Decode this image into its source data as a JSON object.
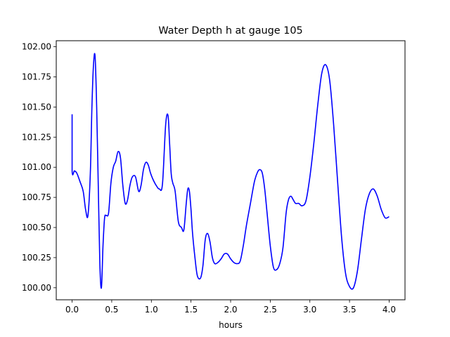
{
  "chart_data": {
    "type": "line",
    "title": "Water Depth h at gauge 105",
    "xlabel": "hours",
    "ylabel": "",
    "xlim": [
      -0.2,
      4.2
    ],
    "ylim": [
      99.9,
      102.05
    ],
    "xticks": [
      0.0,
      0.5,
      1.0,
      1.5,
      2.0,
      2.5,
      3.0,
      3.5,
      4.0
    ],
    "xtick_labels": [
      "0.0",
      "0.5",
      "1.0",
      "1.5",
      "2.0",
      "2.5",
      "3.0",
      "3.5",
      "4.0"
    ],
    "yticks": [
      100.0,
      100.25,
      100.5,
      100.75,
      101.0,
      101.25,
      101.5,
      101.75,
      102.0
    ],
    "ytick_labels": [
      "100.00",
      "100.25",
      "100.50",
      "100.75",
      "101.00",
      "101.25",
      "101.50",
      "101.75",
      "102.00"
    ],
    "grid": false,
    "series": [
      {
        "name": "",
        "color": "#0000ff",
        "x": [
          0.0,
          0.0,
          0.03,
          0.06,
          0.1,
          0.14,
          0.17,
          0.2,
          0.23,
          0.25,
          0.27,
          0.29,
          0.31,
          0.33,
          0.35,
          0.37,
          0.39,
          0.41,
          0.43,
          0.46,
          0.49,
          0.52,
          0.55,
          0.58,
          0.61,
          0.64,
          0.67,
          0.7,
          0.73,
          0.76,
          0.8,
          0.84,
          0.87,
          0.9,
          0.93,
          0.96,
          0.99,
          1.02,
          1.06,
          1.1,
          1.14,
          1.18,
          1.21,
          1.23,
          1.25,
          1.27,
          1.3,
          1.34,
          1.38,
          1.41,
          1.44,
          1.46,
          1.48,
          1.5,
          1.52,
          1.55,
          1.58,
          1.62,
          1.65,
          1.68,
          1.71,
          1.74,
          1.77,
          1.8,
          1.84,
          1.88,
          1.92,
          1.96,
          2.0,
          2.04,
          2.08,
          2.12,
          2.16,
          2.2,
          2.25,
          2.3,
          2.34,
          2.37,
          2.4,
          2.43,
          2.46,
          2.5,
          2.54,
          2.58,
          2.62,
          2.66,
          2.7,
          2.73,
          2.76,
          2.79,
          2.82,
          2.86,
          2.9,
          2.95,
          3.0,
          3.05,
          3.1,
          3.15,
          3.2,
          3.25,
          3.3,
          3.35,
          3.4,
          3.45,
          3.5,
          3.55,
          3.6,
          3.65,
          3.7,
          3.75,
          3.8,
          3.85,
          3.9,
          3.95,
          4.0
        ],
        "y": [
          101.44,
          100.97,
          100.97,
          100.95,
          100.88,
          100.8,
          100.65,
          100.6,
          100.95,
          101.5,
          101.85,
          101.92,
          101.5,
          100.85,
          100.2,
          100.0,
          100.35,
          100.58,
          100.6,
          100.62,
          100.87,
          101.0,
          101.05,
          101.13,
          101.08,
          100.85,
          100.7,
          100.73,
          100.85,
          100.92,
          100.92,
          100.8,
          100.85,
          100.98,
          101.04,
          101.02,
          100.95,
          100.9,
          100.85,
          100.82,
          100.86,
          101.35,
          101.43,
          101.2,
          100.95,
          100.87,
          100.8,
          100.55,
          100.5,
          100.48,
          100.7,
          100.82,
          100.8,
          100.65,
          100.45,
          100.25,
          100.1,
          100.08,
          100.18,
          100.4,
          100.45,
          100.38,
          100.25,
          100.2,
          100.21,
          100.24,
          100.28,
          100.28,
          100.24,
          100.21,
          100.2,
          100.22,
          100.35,
          100.52,
          100.7,
          100.88,
          100.96,
          100.98,
          100.95,
          100.82,
          100.62,
          100.35,
          100.17,
          100.15,
          100.2,
          100.33,
          100.62,
          100.73,
          100.76,
          100.73,
          100.7,
          100.7,
          100.68,
          100.72,
          100.92,
          101.2,
          101.52,
          101.78,
          101.85,
          101.72,
          101.35,
          100.88,
          100.42,
          100.12,
          100.01,
          100.0,
          100.14,
          100.4,
          100.65,
          100.78,
          100.82,
          100.76,
          100.65,
          100.58,
          100.59
        ]
      }
    ]
  }
}
